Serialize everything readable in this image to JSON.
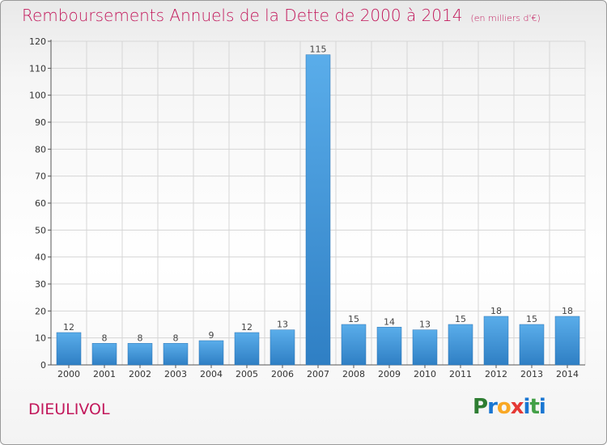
{
  "title": "Remboursements Annuels de la Dette de 2000 à 2014",
  "subtitle": "(en milliers d'€)",
  "city": "DIEULIVOL",
  "logo": {
    "letters": [
      "P",
      "r",
      "o",
      "x",
      "i",
      "t",
      "i"
    ],
    "colors": [
      "#2e7d32",
      "#1976d2",
      "#f9a825",
      "#e53935",
      "#1976d2",
      "#43a047",
      "#1976d2"
    ]
  },
  "colors": {
    "bar": "#4a9ee0",
    "bar_dark": "#2f7fc4",
    "title": "#c2185b",
    "grid": "#d6d6d6"
  },
  "chart_data": {
    "type": "bar",
    "categories": [
      "2000",
      "2001",
      "2002",
      "2003",
      "2004",
      "2005",
      "2006",
      "2007",
      "2008",
      "2009",
      "2010",
      "2011",
      "2012",
      "2013",
      "2014"
    ],
    "values": [
      12,
      8,
      8,
      8,
      9,
      12,
      13,
      115,
      15,
      14,
      13,
      15,
      18,
      15,
      18
    ],
    "ylim": [
      0,
      120
    ],
    "yticks": [
      0,
      10,
      20,
      30,
      40,
      50,
      60,
      70,
      80,
      90,
      100,
      110,
      120
    ],
    "grid": true
  }
}
